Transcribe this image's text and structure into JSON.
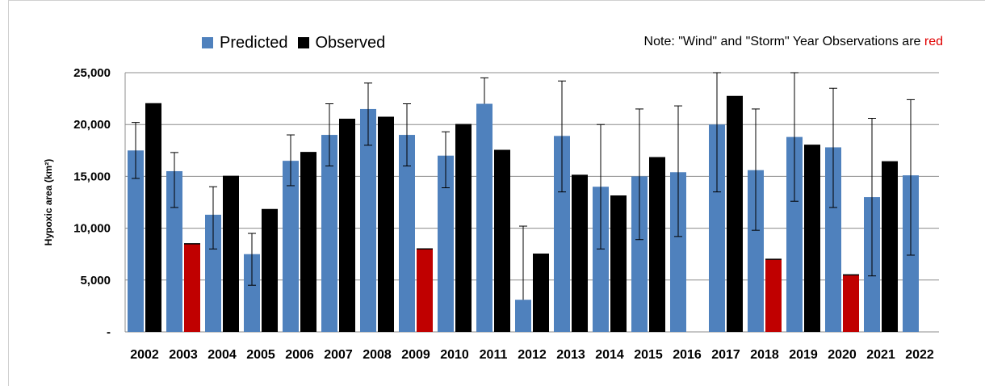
{
  "chart_data": {
    "type": "bar",
    "categories": [
      "2002",
      "2003",
      "2004",
      "2005",
      "2006",
      "2007",
      "2008",
      "2009",
      "2010",
      "2011",
      "2012",
      "2013",
      "2014",
      "2015",
      "2016",
      "2017",
      "2018",
      "2019",
      "2020",
      "2021",
      "2022"
    ],
    "series": [
      {
        "name": "Predicted",
        "color": "#4f81bd",
        "values": [
          17500,
          15500,
          11300,
          7500,
          16500,
          19000,
          21500,
          19000,
          17000,
          22000,
          3100,
          18900,
          14000,
          15000,
          15400,
          20000,
          15600,
          18800,
          17800,
          13000,
          15100
        ],
        "error_low": [
          14800,
          12000,
          8000,
          4500,
          14100,
          16000,
          18000,
          16000,
          13900,
          null,
          null,
          13500,
          8000,
          8900,
          9200,
          13500,
          9800,
          12600,
          12000,
          5400,
          7400
        ],
        "error_high": [
          20200,
          17300,
          14000,
          9500,
          19000,
          22000,
          24000,
          22000,
          19300,
          24500,
          10200,
          24200,
          20000,
          21500,
          21800,
          25000,
          21500,
          25000,
          23500,
          20600,
          22400
        ]
      },
      {
        "name": "Observed",
        "values": [
          22000,
          8500,
          15000,
          11800,
          17300,
          20500,
          20700,
          8000,
          20000,
          17500,
          7500,
          15100,
          13100,
          16800,
          null,
          22700,
          7000,
          18000,
          5500,
          16400,
          null
        ],
        "colors": [
          "#000000",
          "#c00000",
          "#000000",
          "#000000",
          "#000000",
          "#000000",
          "#000000",
          "#c00000",
          "#000000",
          "#000000",
          "#000000",
          "#000000",
          "#000000",
          "#000000",
          "#000000",
          "#000000",
          "#c00000",
          "#000000",
          "#c00000",
          "#000000",
          "#000000"
        ]
      }
    ],
    "ylabel": "Hypoxic area (km²)",
    "ylim": [
      0,
      25000
    ],
    "yticks": [
      0,
      5000,
      10000,
      15000,
      20000,
      25000
    ],
    "ytick_labels": [
      "-",
      "5,000",
      "10,000",
      "15,000",
      "20,000",
      "25,000"
    ],
    "grid": true,
    "legend_position": "top-left",
    "note_prefix": "Note: \"Wind\" and \"Storm\" Year Observations are ",
    "note_highlight": "red",
    "note_highlight_color": "#e00000"
  }
}
